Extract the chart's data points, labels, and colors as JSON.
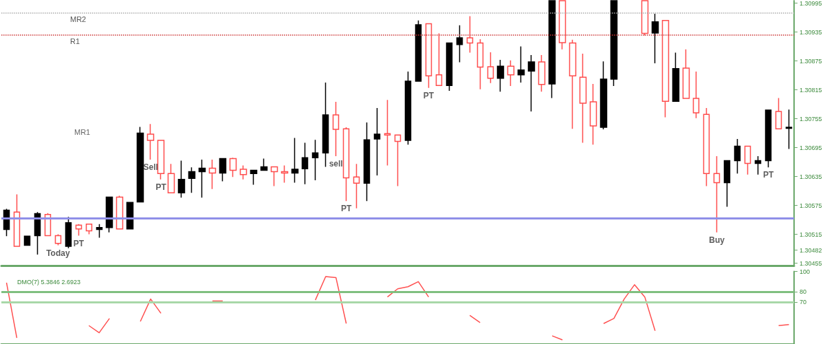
{
  "chart_data": [
    {
      "type": "candlestick",
      "grid": false,
      "tick_labels": "y",
      "categories": [
        null,
        null,
        null,
        null,
        null,
        null,
        null,
        null,
        null,
        null,
        null,
        null,
        null,
        null,
        null,
        null,
        null,
        null,
        null,
        null,
        null,
        null,
        null,
        null,
        null,
        null,
        null,
        null,
        null,
        null,
        null,
        null,
        null,
        null,
        null,
        null,
        null,
        null,
        null,
        null,
        null,
        null,
        null,
        null,
        null,
        null,
        null,
        null,
        null,
        null,
        null,
        null,
        null,
        null,
        null,
        null,
        null,
        null,
        null,
        null,
        null,
        null,
        null,
        null,
        null,
        null,
        null,
        null,
        null,
        null,
        null,
        null,
        null,
        null,
        null,
        null,
        null
      ],
      "ohlc": [
        [
          1.30525,
          1.30568,
          1.30511,
          1.30565
        ],
        [
          1.30561,
          1.30598,
          1.3049,
          1.3049
        ],
        [
          1.30492,
          1.30511,
          1.30492,
          1.30511
        ],
        [
          1.30512,
          1.30561,
          1.30473,
          1.30558
        ],
        [
          1.30556,
          1.30559,
          1.30512,
          1.30512
        ],
        [
          1.30512,
          1.30515,
          1.30492,
          1.30496
        ],
        [
          1.3049,
          1.30551,
          1.30486,
          1.30539
        ],
        [
          1.30534,
          1.30536,
          1.30512,
          1.30526
        ],
        [
          1.30536,
          1.30536,
          1.30515,
          1.30522
        ],
        [
          1.30525,
          1.30536,
          1.30508,
          1.30529
        ],
        [
          1.30529,
          1.30592,
          1.30519,
          1.30592
        ],
        [
          1.30592,
          1.30595,
          1.30526,
          1.30526
        ],
        [
          1.30526,
          1.30581,
          1.30526,
          1.30581
        ],
        [
          1.30582,
          1.30738,
          1.30582,
          1.30725
        ],
        [
          1.30723,
          1.30744,
          1.3067,
          1.3071
        ],
        [
          1.3071,
          1.3071,
          1.30629,
          1.30641
        ],
        [
          1.30641,
          1.30661,
          1.30601,
          1.30601
        ],
        [
          1.30601,
          1.30668,
          1.30591,
          1.30629
        ],
        [
          1.30631,
          1.30654,
          1.30601,
          1.30645
        ],
        [
          1.30645,
          1.3067,
          1.30591,
          1.30652
        ],
        [
          1.30652,
          1.3067,
          1.30609,
          1.30642
        ],
        [
          1.30642,
          1.30672,
          1.30625,
          1.30672
        ],
        [
          1.30672,
          1.30674,
          1.30634,
          1.30648
        ],
        [
          1.3065,
          1.30658,
          1.30629,
          1.30639
        ],
        [
          1.30641,
          1.30648,
          1.30618,
          1.30648
        ],
        [
          1.30648,
          1.30672,
          1.30648,
          1.30655
        ],
        [
          1.30655,
          1.30655,
          1.30615,
          1.30645
        ],
        [
          1.30645,
          1.30658,
          1.30622,
          1.30642
        ],
        [
          1.30642,
          1.30715,
          1.30622,
          1.3065
        ],
        [
          1.30651,
          1.30705,
          1.30619,
          1.30674
        ],
        [
          1.30674,
          1.30711,
          1.30627,
          1.30684
        ],
        [
          1.30684,
          1.3083,
          1.30655,
          1.30763
        ],
        [
          1.30763,
          1.3079,
          1.30677,
          1.30733
        ],
        [
          1.30734,
          1.30737,
          1.30584,
          1.30632
        ],
        [
          1.30634,
          1.30661,
          1.30569,
          1.30621
        ],
        [
          1.30621,
          1.30747,
          1.30584,
          1.30711
        ],
        [
          1.30713,
          1.30777,
          1.30637,
          1.30723
        ],
        [
          1.30724,
          1.30794,
          1.30658,
          1.30721
        ],
        [
          1.30721,
          1.30721,
          1.30615,
          1.30708
        ],
        [
          1.3071,
          1.30853,
          1.30701,
          1.30833
        ],
        [
          1.30833,
          1.30959,
          1.30833,
          1.3095
        ],
        [
          1.30952,
          1.30952,
          1.30819,
          1.30844
        ],
        [
          1.30846,
          1.30932,
          1.30824,
          1.30824
        ],
        [
          1.30824,
          1.30912,
          1.30813,
          1.30912
        ],
        [
          1.30909,
          1.30949,
          1.30872,
          1.30923
        ],
        [
          1.30923,
          1.30968,
          1.30892,
          1.30912
        ],
        [
          1.30912,
          1.3092,
          1.30816,
          1.30862
        ],
        [
          1.30863,
          1.30893,
          1.30829,
          1.30839
        ],
        [
          1.30839,
          1.30877,
          1.30811,
          1.30864
        ],
        [
          1.30864,
          1.30876,
          1.30823,
          1.30846
        ],
        [
          1.30846,
          1.30905,
          1.3083,
          1.30856
        ],
        [
          1.30854,
          1.30887,
          1.3077,
          1.30873
        ],
        [
          1.30873,
          1.30887,
          1.30811,
          1.30826
        ],
        [
          1.30827,
          1.31,
          1.30798,
          1.31
        ],
        [
          1.31,
          1.31,
          1.30899,
          1.30913
        ],
        [
          1.30912,
          1.30919,
          1.30734,
          1.30844
        ],
        [
          1.30841,
          1.3089,
          1.30705,
          1.30787
        ],
        [
          1.3079,
          1.30827,
          1.30701,
          1.3074
        ],
        [
          1.30737,
          1.30874,
          1.30733,
          1.30837
        ],
        [
          1.30837,
          1.31,
          1.30823,
          1.31
        ],
        null,
        null,
        [
          1.31,
          1.31,
          1.30928,
          1.30932
        ],
        [
          1.30933,
          1.30973,
          1.3087,
          1.30956
        ],
        [
          1.30959,
          1.30959,
          1.30758,
          1.30791
        ],
        [
          1.30791,
          1.30892,
          1.30791,
          1.30859
        ],
        [
          1.3086,
          1.30899,
          1.30797,
          1.30797
        ],
        [
          1.30797,
          1.30853,
          1.30756,
          1.30767
        ],
        [
          1.30764,
          1.30777,
          1.30615,
          1.30641
        ],
        [
          1.30641,
          1.30677,
          1.30519,
          1.30622
        ],
        [
          1.30622,
          1.30668,
          1.30572,
          1.30668
        ],
        [
          1.30668,
          1.30713,
          1.30641,
          1.30698
        ],
        [
          1.30698,
          1.30698,
          1.30639,
          1.30662
        ],
        [
          1.30662,
          1.30677,
          1.30639,
          1.30668
        ],
        [
          1.30668,
          1.30773,
          1.30654,
          1.30773
        ],
        [
          1.3077,
          1.30798,
          1.30734,
          1.30734
        ],
        [
          1.30735,
          1.30774,
          1.30692,
          1.30737
        ]
      ],
      "colors": [
        "#000000",
        "#ff4d4d",
        "#000000",
        "#000000",
        "#ff4d4d",
        "#ff4d4d",
        "#000000",
        "#ff4d4d",
        "#ff4d4d",
        "#000000",
        "#000000",
        "#ff4d4d",
        "#000000",
        "#000000",
        "#ff4d4d",
        "#ff4d4d",
        "#ff4d4d",
        "#000000",
        "#000000",
        "#000000",
        "#ff4d4d",
        "#000000",
        "#ff4d4d",
        "#ff4d4d",
        "#000000",
        "#000000",
        "#ff4d4d",
        "#ff4d4d",
        "#000000",
        "#000000",
        "#000000",
        "#000000",
        "#ff4d4d",
        "#ff4d4d",
        "#ff4d4d",
        "#000000",
        "#000000",
        "#ff4d4d",
        "#ff4d4d",
        "#000000",
        "#000000",
        "#ff4d4d",
        "#ff4d4d",
        "#000000",
        "#000000",
        "#ff4d4d",
        "#ff4d4d",
        "#ff4d4d",
        "#000000",
        "#ff4d4d",
        "#000000",
        "#000000",
        "#ff4d4d",
        "#000000",
        "#ff4d4d",
        "#ff4d4d",
        "#ff4d4d",
        "#ff4d4d",
        "#000000",
        "#000000",
        null,
        null,
        "#ff4d4d",
        "#000000",
        "#ff4d4d",
        "#000000",
        "#ff4d4d",
        "#ff4d4d",
        "#ff4d4d",
        "#ff4d4d",
        "#000000",
        "#000000",
        "#ff4d4d",
        "#000000",
        "#000000",
        "#ff4d4d",
        "#000000"
      ],
      "value_labels": [
        null,
        null,
        null,
        null,
        null,
        "Today",
        null,
        "PT",
        null,
        null,
        null,
        null,
        null,
        null,
        "Sell",
        "PT",
        null,
        null,
        null,
        null,
        null,
        null,
        null,
        null,
        null,
        null,
        null,
        null,
        null,
        null,
        null,
        null,
        "sell",
        "PT",
        null,
        null,
        null,
        null,
        null,
        null,
        null,
        "PT",
        null,
        null,
        null,
        null,
        null,
        null,
        null,
        null,
        null,
        null,
        null,
        null,
        null,
        null,
        null,
        null,
        null,
        null,
        null,
        null,
        null,
        null,
        null,
        null,
        null,
        null,
        null,
        "Buy",
        null,
        null,
        null,
        null,
        "PT",
        null,
        null
      ],
      "ylim": [
        1.3045,
        1.31
      ],
      "yticks": [
        1.30455,
        {
          "value": 1.30482,
          "label": "1.30482"
        },
        1.30515,
        1.30575,
        1.30635,
        1.30695,
        1.30755,
        1.30815,
        1.30875,
        1.30935,
        1.30995
      ],
      "ref_lines": [
        {
          "axis": "y",
          "value": 1.30975,
          "label": "MR2",
          "color": "#aaaaaa",
          "line_style": "dotted"
        },
        {
          "axis": "y",
          "value": 1.30929,
          "label": "R1",
          "color": "#cc3333",
          "line_style": "dotted"
        },
        {
          "axis": "y",
          "value": 1.30548,
          "label": null,
          "color": "#8f8fe8",
          "line_style": "solid"
        }
      ],
      "annotations": [
        "MR1"
      ]
    },
    {
      "type": "line",
      "grid": false,
      "tick_labels": "y",
      "marker": "none",
      "title": "DMO(7) 5.3846 2.6923",
      "categories": [
        null,
        null,
        null,
        null,
        null,
        null,
        null,
        null,
        null,
        null,
        null,
        null,
        null,
        null,
        null,
        null,
        null,
        null,
        null,
        null,
        null,
        null,
        null,
        null,
        null,
        null,
        null,
        null,
        null,
        null,
        null,
        null,
        null,
        null,
        null,
        null,
        null,
        null,
        null,
        null,
        null,
        null,
        null,
        null,
        null,
        null,
        null,
        null,
        null,
        null,
        null,
        null,
        null,
        null,
        null,
        null,
        null,
        null,
        null,
        null,
        null,
        null,
        null,
        null,
        null,
        null,
        null,
        null,
        null,
        null,
        null,
        null,
        null,
        null,
        null,
        null,
        null
      ],
      "series": [
        {
          "color": "#ff5050",
          "values": [
            89,
            35,
            null,
            null,
            null,
            null,
            null,
            null,
            47,
            40,
            54,
            null,
            null,
            51,
            73,
            59,
            null,
            null,
            null,
            null,
            71,
            71,
            null,
            null,
            null,
            null,
            null,
            null,
            null,
            null,
            72,
            95,
            94,
            49,
            null,
            null,
            null,
            75,
            83,
            85,
            90,
            75,
            null,
            null,
            null,
            57,
            50,
            null,
            null,
            null,
            null,
            null,
            null,
            37,
            33,
            null,
            null,
            null,
            49,
            54,
            73,
            87,
            75,
            42,
            null,
            null,
            null,
            null,
            null,
            null,
            null,
            null,
            null,
            null,
            null,
            47,
            48
          ]
        }
      ],
      "ylim": [
        29,
        100
      ],
      "yticks": [
        70,
        80,
        100
      ],
      "ref_lines": [
        {
          "axis": "y",
          "value": 80,
          "label": null,
          "color": "#7fbf7f",
          "line_style": "solid"
        },
        {
          "axis": "y",
          "value": 70,
          "label": null,
          "color": "#a8d8a8",
          "line_style": "solid"
        }
      ]
    }
  ]
}
